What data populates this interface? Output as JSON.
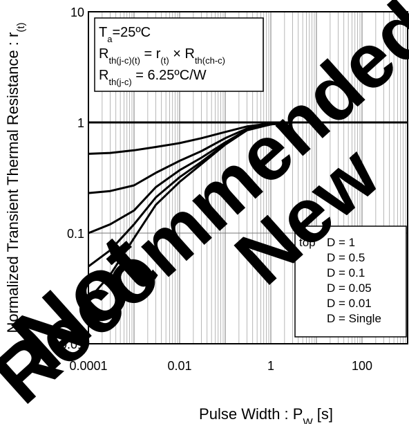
{
  "chart_data": {
    "type": "line",
    "title": "",
    "xlabel": {
      "main": "Pulse Width : P",
      "sub": "W",
      "unit": " [s]"
    },
    "ylabel": {
      "main": "Normalized Transient Thermal Resistance : r",
      "sub": "(t)"
    },
    "x_scale": "log",
    "y_scale": "log",
    "xlim": [
      0.0001,
      1000
    ],
    "ylim": [
      0.01,
      10
    ],
    "x_ticks": [
      "0.0001",
      "0.01",
      "1",
      "100"
    ],
    "y_ticks": [
      "0.01",
      "0.1",
      "1",
      "10"
    ],
    "grid": true,
    "annotations": [
      {
        "parts": [
          [
            "T",
            ""
          ],
          [
            "a",
            "sub"
          ],
          [
            "=25ºC",
            ""
          ]
        ]
      },
      {
        "parts": [
          [
            "R",
            ""
          ],
          [
            "th(j-c)(t)",
            "sub"
          ],
          [
            " = r",
            ""
          ],
          [
            "(t)",
            "sub"
          ],
          [
            " × R",
            ""
          ],
          [
            "th(ch-c)",
            "sub"
          ]
        ]
      },
      {
        "parts": [
          [
            "R",
            ""
          ],
          [
            "th(j-c)",
            "sub"
          ],
          [
            " = 6.25ºC/W",
            ""
          ]
        ]
      }
    ],
    "legend": {
      "position": "bottom-right",
      "prefix": "top",
      "entries": [
        "D = 1",
        "D = 0.5",
        "D = 0.1",
        "D = 0.05",
        "D = 0.01",
        "D = Single"
      ]
    },
    "series": [
      {
        "name": "D = 1",
        "x": [
          0.0001,
          1000
        ],
        "y": [
          1,
          1
        ]
      },
      {
        "name": "D = 0.5",
        "x": [
          0.0001,
          0.0003,
          0.001,
          0.003,
          0.01,
          0.03,
          0.1,
          0.3,
          1,
          3,
          10,
          100,
          1000
        ],
        "y": [
          0.52,
          0.53,
          0.56,
          0.6,
          0.65,
          0.72,
          0.82,
          0.92,
          0.98,
          1,
          1,
          1,
          1
        ]
      },
      {
        "name": "D = 0.1",
        "x": [
          0.0001,
          0.0003,
          0.001,
          0.003,
          0.01,
          0.03,
          0.1,
          0.3,
          1,
          3,
          10,
          100,
          1000
        ],
        "y": [
          0.23,
          0.24,
          0.27,
          0.35,
          0.45,
          0.55,
          0.72,
          0.88,
          0.97,
          1,
          1,
          1,
          1
        ]
      },
      {
        "name": "D = 0.05",
        "x": [
          0.0001,
          0.0003,
          0.001,
          0.003,
          0.01,
          0.03,
          0.1,
          0.3,
          1,
          3,
          10,
          100,
          1000
        ],
        "y": [
          0.1,
          0.12,
          0.16,
          0.26,
          0.37,
          0.48,
          0.66,
          0.86,
          0.96,
          1,
          1,
          1,
          1
        ]
      },
      {
        "name": "D = 0.01",
        "x": [
          0.0001,
          0.0003,
          0.001,
          0.003,
          0.01,
          0.03,
          0.1,
          0.3,
          1,
          3,
          10,
          100,
          1000
        ],
        "y": [
          0.05,
          0.07,
          0.12,
          0.21,
          0.32,
          0.44,
          0.64,
          0.85,
          0.96,
          1,
          1,
          1,
          1
        ]
      },
      {
        "name": "D = Single",
        "x": [
          0.0001,
          0.0003,
          0.001,
          0.003,
          0.01,
          0.03,
          0.1,
          0.3,
          1,
          3,
          10,
          100,
          1000
        ],
        "y": [
          0.025,
          0.042,
          0.09,
          0.18,
          0.29,
          0.42,
          0.63,
          0.85,
          0.96,
          1,
          1,
          1,
          1
        ]
      }
    ]
  },
  "watermark": {
    "words": [
      "Not",
      "Recommended for",
      "New"
    ]
  }
}
